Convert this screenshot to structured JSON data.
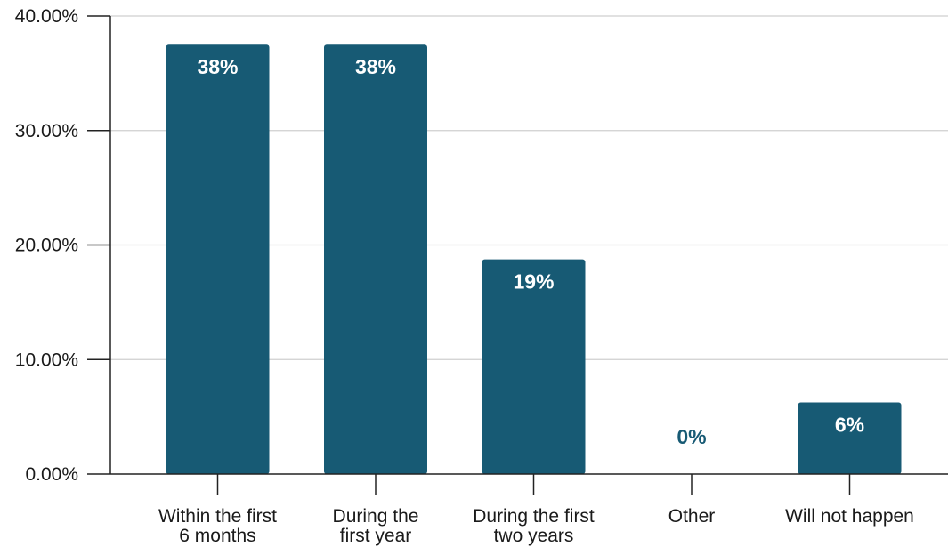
{
  "chart_data": {
    "type": "bar",
    "categories": [
      [
        "Within the first",
        "6 months"
      ],
      [
        "During the",
        "first year"
      ],
      [
        "During the first",
        "two years"
      ],
      [
        "Other"
      ],
      [
        "Will not happen"
      ]
    ],
    "values": [
      37.5,
      37.5,
      18.75,
      0,
      6.25
    ],
    "data_labels": [
      "38%",
      "38%",
      "19%",
      "0%",
      "6%"
    ],
    "y_ticks": [
      "0.00%",
      "10.00%",
      "20.00%",
      "30.00%",
      "40.00%"
    ],
    "ylim": [
      0,
      40
    ],
    "grid": true,
    "bar_color": "#175a74",
    "label_inside_color": "#ffffff",
    "label_outside_color": "#175a74",
    "title": "",
    "xlabel": "",
    "ylabel": ""
  }
}
